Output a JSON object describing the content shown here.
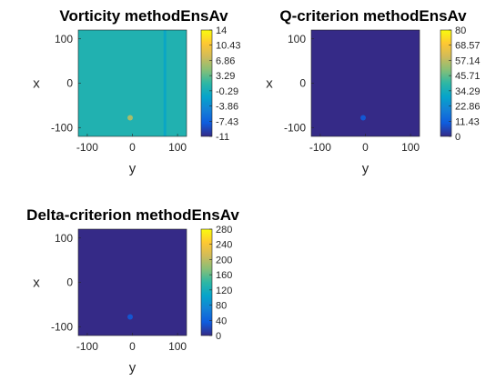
{
  "chart_data": [
    {
      "type": "heatmap",
      "title": "Vorticity methodEnsAv",
      "xlabel": "y",
      "ylabel": "x",
      "xlim": [
        -120,
        120
      ],
      "ylim": [
        -120,
        120
      ],
      "xticks": [
        "-100",
        "0",
        "100"
      ],
      "yticks": [
        "100",
        "0",
        "-100"
      ],
      "field_value": 0.5,
      "colorbar_range": [
        -11,
        14
      ],
      "colorbar_ticks": [
        "14",
        "10.43",
        "6.86",
        "3.29",
        "-0.29",
        "-3.86",
        "-7.43",
        "-11"
      ],
      "features": [
        {
          "kind": "spot",
          "y": -5,
          "x": -78,
          "value": 6.0
        },
        {
          "kind": "vertical_band",
          "y": 72,
          "value": -1.5
        }
      ]
    },
    {
      "type": "heatmap",
      "title": "Q-criterion methodEnsAv",
      "xlabel": "y",
      "ylabel": "x",
      "xlim": [
        -120,
        120
      ],
      "ylim": [
        -120,
        120
      ],
      "xticks": [
        "-100",
        "0",
        "100"
      ],
      "yticks": [
        "100",
        "0",
        "-100"
      ],
      "field_value": 0,
      "colorbar_range": [
        0,
        80
      ],
      "colorbar_ticks": [
        "80",
        "68.57",
        "57.14",
        "45.71",
        "34.29",
        "22.86",
        "11.43",
        "0"
      ],
      "features": [
        {
          "kind": "spot",
          "y": -5,
          "x": -78,
          "value": 9
        }
      ]
    },
    {
      "type": "heatmap",
      "title": "Delta-criterion methodEnsAv",
      "xlabel": "y",
      "ylabel": "x",
      "xlim": [
        -120,
        120
      ],
      "ylim": [
        -120,
        120
      ],
      "xticks": [
        "-100",
        "0",
        "100"
      ],
      "yticks": [
        "100",
        "0",
        "-100"
      ],
      "field_value": 0,
      "colorbar_range": [
        0,
        280
      ],
      "colorbar_ticks": [
        "280",
        "240",
        "200",
        "160",
        "120",
        "80",
        "40",
        "0"
      ],
      "features": [
        {
          "kind": "spot",
          "y": -5,
          "x": -78,
          "value": 30
        }
      ]
    }
  ]
}
